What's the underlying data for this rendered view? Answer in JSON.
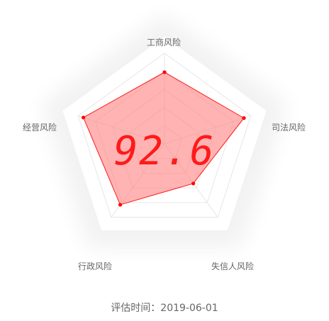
{
  "chart_data": {
    "type": "radar",
    "score": "92.6",
    "axes": [
      "工商风险",
      "司法风险",
      "失信人风险",
      "行政风险",
      "经营风险"
    ],
    "values": [
      0.79,
      0.92,
      0.54,
      0.83,
      0.94
    ],
    "range": [
      0,
      1
    ],
    "grid_levels": 5,
    "colors": {
      "area": "#ff8080",
      "line": "#ff1a1a",
      "point": "#ff0000",
      "grid": "#e6e6e6",
      "score": "#ff1a1a"
    }
  },
  "footer": {
    "date_label": "评估时间：2019-06-01"
  }
}
